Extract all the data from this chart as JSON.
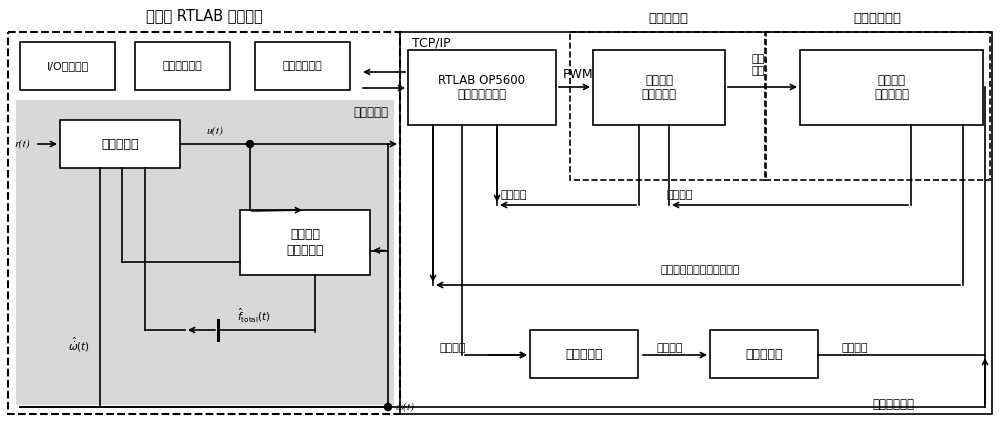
{
  "title_left": "上位机 RTLAB 控制模型",
  "title_motor_driver": "电机驱动器",
  "title_bldc": "无刷直流电机",
  "label_tcpip": "TCP/IP",
  "label_pwm": "PWM",
  "label_drive_voltage": "驱动\n电压",
  "label_controller_model": "控制器模型",
  "label_sampling_current": "采样电流",
  "label_three_phase_current": "三相电流",
  "label_rotor_position": "转子位置三位二进制数编码",
  "label_voltage_control": "电压控制",
  "label_current_control": "电流控制",
  "label_torque_control": "转矩控制",
  "label_speed_calc": "电机转速计算",
  "label_rt": "r(t)",
  "label_ut": "u(t)",
  "label_omega_t": "ω(t)",
  "label_f_hat": "$\\hat{f}_{\\mathrm{total}}(t)$",
  "label_omega_hat": "$\\hat{\\dot{\\omega}}(t)$",
  "box1_text": "I/O接口模块",
  "box2_text": "电路保护模块",
  "box3_text": "电子换向模块",
  "box4_text": "反步控制器",
  "box5_text": "RTLAB OP5600\n实时数字仿真器",
  "box6_text": "驱动电路\n电流传感器",
  "box7_text": "电机本体\n霍尔传感器",
  "box8_text": "降阶扩张\n状态观测器",
  "box9_text": "张力控制器",
  "box10_text": "磁粉刹车器",
  "gray_color": "#d8d8d8"
}
